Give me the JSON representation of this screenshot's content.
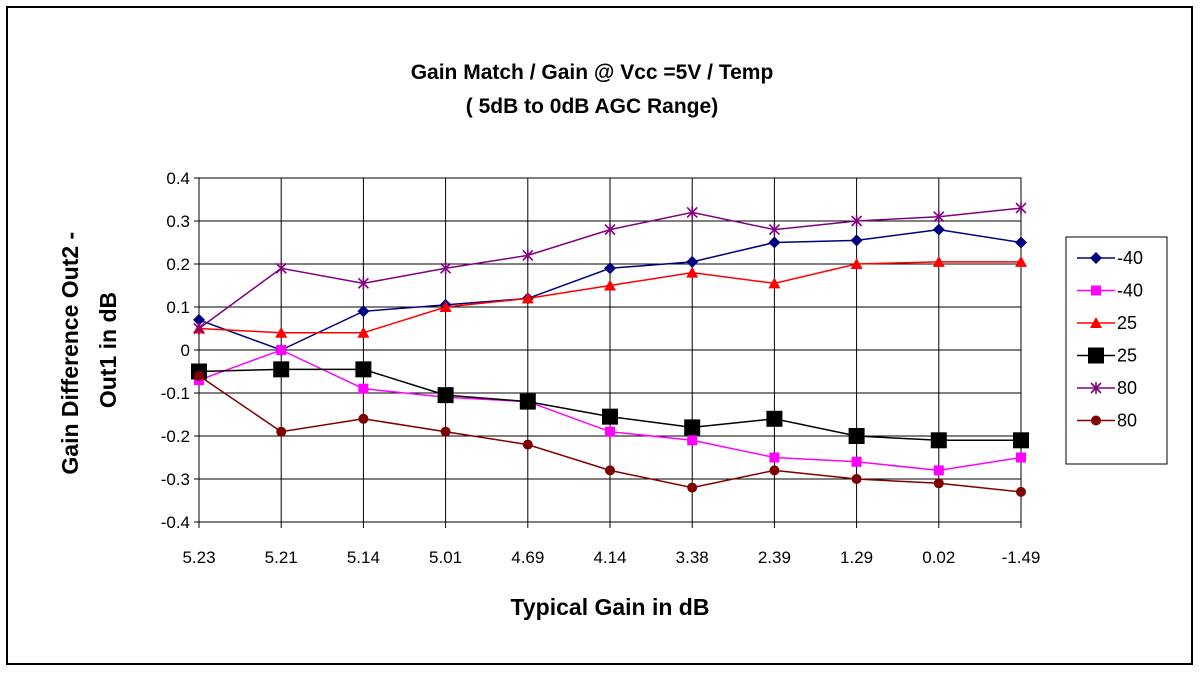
{
  "chart_data": {
    "type": "line",
    "title": "Gain Match / Gain @ Vcc =5V / Temp",
    "subtitle": "( 5dB to 0dB AGC Range)",
    "xlabel": "Typical Gain in dB",
    "ylabel": "Gain Difference Out2 - Out1 in dB",
    "ylabel_lines": [
      "Gain Difference Out2 -",
      "Out1 in dB"
    ],
    "categories": [
      "5.23",
      "5.21",
      "5.14",
      "5.01",
      "4.69",
      "4.14",
      "3.38",
      "2.39",
      "1.29",
      "0.02",
      "-1.49"
    ],
    "ylim": [
      -0.4,
      0.4
    ],
    "yticks": [
      0.4,
      0.3,
      0.2,
      0.1,
      0,
      -0.1,
      -0.2,
      -0.3,
      -0.4
    ],
    "ytick_labels": [
      "0.4",
      "0.3",
      "0.2",
      "0.1",
      "0",
      "-0.1",
      "-0.2",
      "-0.3",
      "-0.4"
    ],
    "grid": true,
    "legend_position": "right",
    "series": [
      {
        "name": "-40",
        "color": "#000080",
        "marker": "diamond",
        "values": [
          0.07,
          0.0,
          0.09,
          0.105,
          0.12,
          0.19,
          0.205,
          0.25,
          0.255,
          0.28,
          0.25
        ]
      },
      {
        "name": "-40",
        "color": "#FF00FF",
        "marker": "square-small",
        "values": [
          -0.07,
          0.0,
          -0.09,
          -0.11,
          -0.12,
          -0.19,
          -0.21,
          -0.25,
          -0.26,
          -0.28,
          -0.25
        ]
      },
      {
        "name": "25",
        "color": "#FF0000",
        "marker": "triangle",
        "values": [
          0.05,
          0.04,
          0.04,
          0.1,
          0.12,
          0.15,
          0.18,
          0.155,
          0.2,
          0.205,
          0.205
        ]
      },
      {
        "name": "25",
        "color": "#000000",
        "marker": "square-large",
        "values": [
          -0.05,
          -0.045,
          -0.045,
          -0.105,
          -0.12,
          -0.155,
          -0.18,
          -0.16,
          -0.2,
          -0.21,
          -0.21
        ]
      },
      {
        "name": "80",
        "color": "#800080",
        "marker": "star",
        "values": [
          0.05,
          0.19,
          0.155,
          0.19,
          0.22,
          0.28,
          0.32,
          0.28,
          0.3,
          0.31,
          0.33
        ]
      },
      {
        "name": "80",
        "color": "#800000",
        "marker": "circle",
        "values": [
          -0.06,
          -0.19,
          -0.16,
          -0.19,
          -0.22,
          -0.28,
          -0.32,
          -0.28,
          -0.3,
          -0.31,
          -0.33
        ]
      }
    ]
  }
}
